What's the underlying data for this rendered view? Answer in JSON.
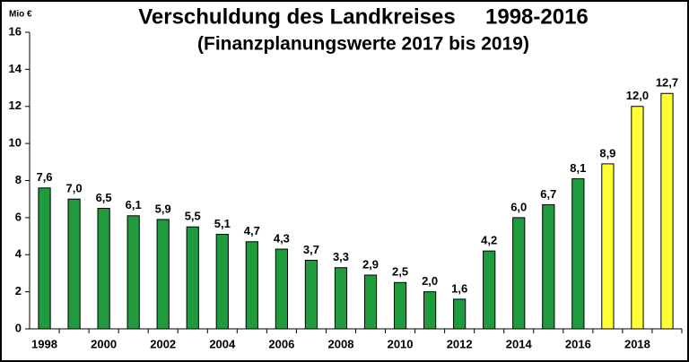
{
  "chart_data": {
    "type": "bar",
    "title": "Verschuldung des Landkreises     1998-2016",
    "subtitle": "(Finanzplanungswerte 2017 bis 2019)",
    "y_label": "Mio €",
    "categories": [
      "1998",
      null,
      "2000",
      null,
      "2002",
      null,
      "2004",
      null,
      "2006",
      null,
      "2008",
      null,
      "2010",
      null,
      "2012",
      null,
      "2014",
      null,
      "2016",
      null,
      "2018",
      null
    ],
    "values": [
      7.6,
      7.0,
      6.5,
      6.1,
      5.9,
      5.5,
      5.1,
      4.7,
      4.3,
      3.7,
      3.3,
      2.9,
      2.5,
      2.0,
      1.6,
      4.2,
      6.0,
      6.7,
      8.1,
      8.9,
      12.0,
      12.7
    ],
    "value_labels": [
      "7,6",
      "7,0",
      "6,5",
      "6,1",
      "5,9",
      "5,5",
      "5,1",
      "4,7",
      "4,3",
      "3,7",
      "3,3",
      "2,9",
      "2,5",
      "2,0",
      "1,6",
      "4,2",
      "6,0",
      "6,7",
      "8,1",
      "8,9",
      "12,0",
      "12,7"
    ],
    "colors": [
      "#1f9a3c",
      "#1f9a3c",
      "#1f9a3c",
      "#1f9a3c",
      "#1f9a3c",
      "#1f9a3c",
      "#1f9a3c",
      "#1f9a3c",
      "#1f9a3c",
      "#1f9a3c",
      "#1f9a3c",
      "#1f9a3c",
      "#1f9a3c",
      "#1f9a3c",
      "#1f9a3c",
      "#1f9a3c",
      "#1f9a3c",
      "#1f9a3c",
      "#1f9a3c",
      "#ffff33",
      "#ffff33",
      "#ffff33"
    ],
    "ylim": [
      0,
      16
    ],
    "yticks": [
      0,
      2,
      4,
      6,
      8,
      10,
      12,
      14,
      16
    ],
    "grid": false
  }
}
